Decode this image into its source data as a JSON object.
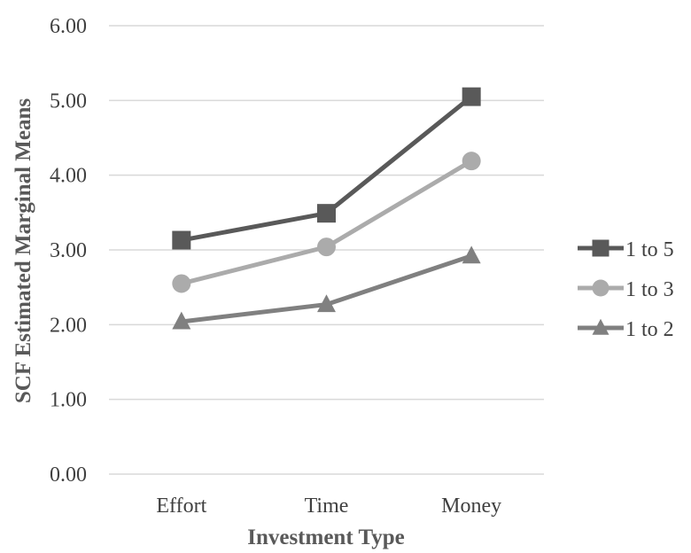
{
  "chart_data": {
    "type": "line",
    "title": "",
    "xlabel": "Investment Type",
    "ylabel": "SCF Estimated Marginal Means",
    "categories": [
      "Effort",
      "Time",
      "Money"
    ],
    "ylim": [
      0,
      6
    ],
    "yticks": [
      "0.00",
      "1.00",
      "2.00",
      "3.00",
      "4.00",
      "5.00",
      "6.00"
    ],
    "grid": true,
    "legend_position": "right",
    "series": [
      {
        "name": "1 to 5",
        "values": [
          3.13,
          3.49,
          5.05
        ],
        "color": "#595959",
        "marker": "square"
      },
      {
        "name": "1 to 3",
        "values": [
          2.55,
          3.04,
          4.19
        ],
        "color": "#ababab",
        "marker": "circle"
      },
      {
        "name": "1 to 2",
        "values": [
          2.04,
          2.27,
          2.92
        ],
        "color": "#808080",
        "marker": "triangle"
      }
    ]
  }
}
